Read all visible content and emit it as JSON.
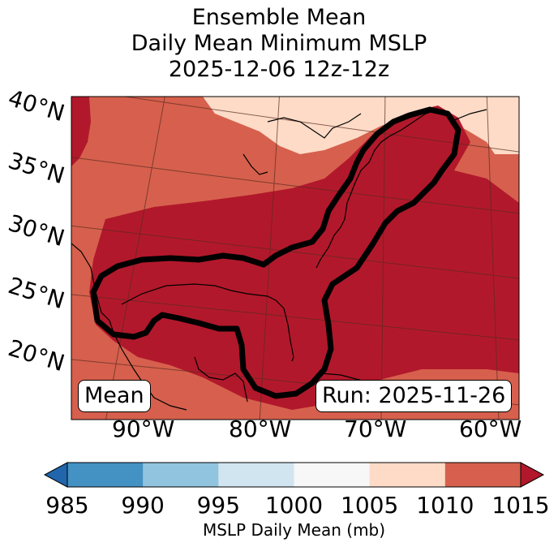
{
  "title": [
    "Ensemble Mean",
    "Daily Mean Minimum MSLP",
    "2025-12-06 12z-12z"
  ],
  "lat_labels": [
    "40°N",
    "35°N",
    "30°N",
    "25°N",
    "20°N"
  ],
  "lon_labels": [
    "90°W",
    "80°W",
    "70°W",
    "60°W"
  ],
  "mean_box": "Mean",
  "run_box": "Run: 2025-11-26",
  "colorbar": {
    "label": "MSLP Daily Mean (mb)",
    "ticks": [
      "985",
      "990",
      "995",
      "1000",
      "1005",
      "1010",
      "1015"
    ],
    "colors": [
      "#4392c3",
      "#91c4de",
      "#d1e5f0",
      "#f7f7f7",
      "#fddbc7",
      "#d6604d",
      "#b2182b"
    ],
    "under_color": "#2166ac",
    "over_color": "#b2182b"
  },
  "map_colors": {
    "c1005_1010": "#fddbc7",
    "c1010_1015": "#d6604d",
    "c_over_1015": "#b2182b",
    "contour": "#000000"
  }
}
